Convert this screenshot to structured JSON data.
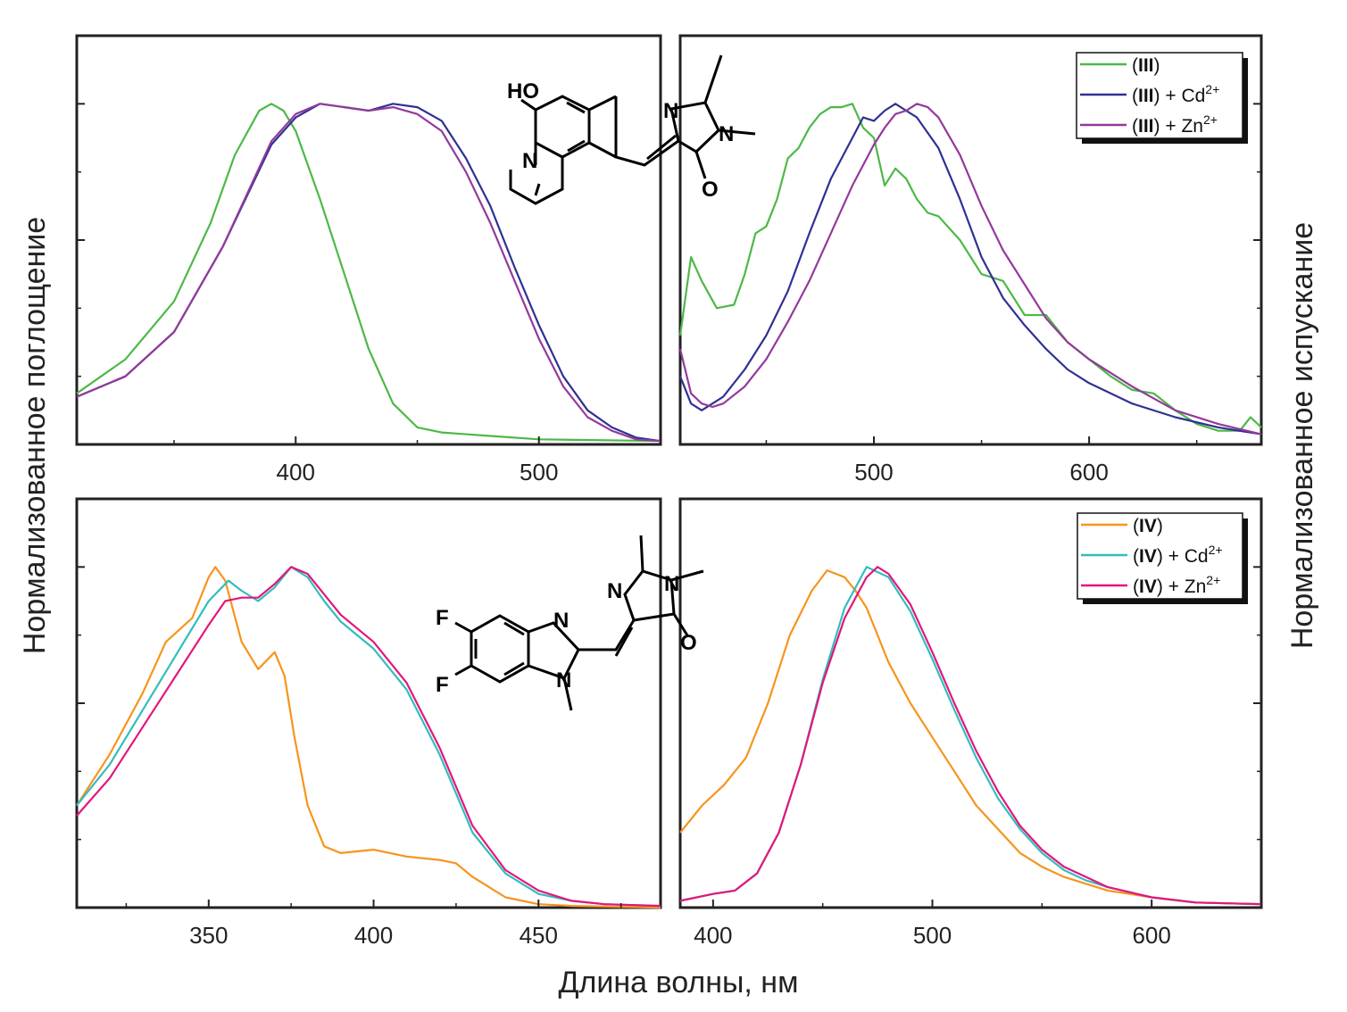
{
  "figure": {
    "xlabel": "Длина волны, нм",
    "ylabel_left": "Нормализованное поглощение",
    "ylabel_right": "Нормализованное испускание"
  },
  "structures": {
    "top": {
      "name": "(III)",
      "atoms": [
        "HO",
        "N",
        "N",
        "N",
        "O"
      ]
    },
    "bottom": {
      "name": "(IV)",
      "atoms": [
        "F",
        "F",
        "N",
        "N",
        "N",
        "N",
        "O"
      ]
    }
  },
  "colors": {
    "III": "#4db848",
    "III_Cd": "#2e3192",
    "III_Zn": "#93399b",
    "IV": "#f7941d",
    "IV_Cd": "#33bdbd",
    "IV_Zn": "#e3167b"
  },
  "chart_data": [
    {
      "id": "top-absorption",
      "type": "line",
      "title": "",
      "xlim": [
        310,
        550
      ],
      "ylim": [
        0,
        1.2
      ],
      "xticks": [
        400,
        500
      ],
      "xticklabels": [
        "400",
        "500"
      ],
      "grid": false,
      "series": [
        {
          "name": "(III)",
          "color_key": "III",
          "x": [
            310,
            330,
            350,
            365,
            375,
            385,
            390,
            395,
            400,
            410,
            420,
            430,
            440,
            450,
            460,
            480,
            500,
            550
          ],
          "y": [
            0.15,
            0.25,
            0.42,
            0.65,
            0.85,
            0.98,
            1.0,
            0.98,
            0.92,
            0.72,
            0.5,
            0.28,
            0.12,
            0.05,
            0.035,
            0.025,
            0.015,
            0.01
          ]
        },
        {
          "name": "(III) + Cd2+",
          "color_key": "III_Cd",
          "x": [
            310,
            330,
            350,
            370,
            390,
            400,
            410,
            420,
            430,
            440,
            450,
            460,
            470,
            480,
            490,
            500,
            510,
            520,
            530,
            540,
            550
          ],
          "y": [
            0.14,
            0.2,
            0.33,
            0.58,
            0.88,
            0.96,
            1.0,
            0.99,
            0.98,
            1.0,
            0.99,
            0.95,
            0.84,
            0.7,
            0.52,
            0.35,
            0.2,
            0.1,
            0.05,
            0.02,
            0.01
          ]
        },
        {
          "name": "(III) + Zn2+",
          "color_key": "III_Zn",
          "x": [
            310,
            330,
            350,
            370,
            390,
            400,
            410,
            420,
            430,
            440,
            450,
            460,
            470,
            480,
            490,
            500,
            510,
            520,
            530,
            540,
            550
          ],
          "y": [
            0.14,
            0.2,
            0.33,
            0.58,
            0.89,
            0.97,
            1.0,
            0.99,
            0.98,
            0.99,
            0.97,
            0.92,
            0.8,
            0.65,
            0.48,
            0.31,
            0.17,
            0.08,
            0.04,
            0.015,
            0.01
          ]
        }
      ]
    },
    {
      "id": "top-emission",
      "type": "line",
      "title": "",
      "xlim": [
        410,
        680
      ],
      "ylim": [
        0,
        1.2
      ],
      "xticks": [
        500,
        600
      ],
      "xticklabels": [
        "500",
        "600"
      ],
      "legend": {
        "position": "top-right",
        "entries": [
          "(III)",
          "(III) + Cd2+",
          "(III) + Zn2+"
        ]
      },
      "series": [
        {
          "name": "(III)",
          "color_key": "III",
          "x": [
            410,
            415,
            420,
            427,
            435,
            440,
            445,
            450,
            455,
            460,
            465,
            470,
            475,
            480,
            485,
            490,
            495,
            500,
            505,
            510,
            515,
            520,
            525,
            530,
            540,
            550,
            560,
            570,
            580,
            590,
            600,
            610,
            620,
            630,
            640,
            650,
            660,
            670,
            675,
            680
          ],
          "y": [
            0.32,
            0.55,
            0.48,
            0.4,
            0.41,
            0.5,
            0.62,
            0.64,
            0.72,
            0.84,
            0.87,
            0.93,
            0.97,
            0.99,
            0.99,
            1.0,
            0.93,
            0.9,
            0.76,
            0.81,
            0.78,
            0.72,
            0.68,
            0.67,
            0.6,
            0.5,
            0.48,
            0.38,
            0.38,
            0.3,
            0.25,
            0.2,
            0.16,
            0.15,
            0.1,
            0.06,
            0.04,
            0.04,
            0.08,
            0.05
          ]
        },
        {
          "name": "(III) + Cd2+",
          "color_key": "III_Cd",
          "x": [
            410,
            415,
            420,
            425,
            430,
            440,
            450,
            460,
            470,
            480,
            490,
            495,
            500,
            505,
            510,
            515,
            520,
            530,
            540,
            550,
            560,
            570,
            580,
            590,
            600,
            620,
            640,
            660,
            680
          ],
          "y": [
            0.2,
            0.12,
            0.1,
            0.12,
            0.14,
            0.22,
            0.32,
            0.45,
            0.62,
            0.78,
            0.9,
            0.96,
            0.95,
            0.98,
            1.0,
            0.98,
            0.96,
            0.87,
            0.72,
            0.55,
            0.43,
            0.35,
            0.28,
            0.22,
            0.18,
            0.12,
            0.08,
            0.05,
            0.03
          ]
        },
        {
          "name": "(III) + Zn2+",
          "color_key": "III_Zn",
          "x": [
            410,
            415,
            420,
            425,
            430,
            440,
            450,
            460,
            470,
            480,
            490,
            500,
            505,
            510,
            515,
            520,
            525,
            530,
            540,
            550,
            560,
            570,
            580,
            590,
            600,
            620,
            640,
            660,
            680
          ],
          "y": [
            0.28,
            0.15,
            0.12,
            0.11,
            0.12,
            0.17,
            0.25,
            0.36,
            0.48,
            0.62,
            0.76,
            0.88,
            0.93,
            0.97,
            0.98,
            1.0,
            0.99,
            0.96,
            0.85,
            0.7,
            0.57,
            0.47,
            0.37,
            0.3,
            0.25,
            0.17,
            0.1,
            0.06,
            0.03
          ]
        }
      ]
    },
    {
      "id": "bottom-absorption",
      "type": "line",
      "title": "",
      "xlim": [
        310,
        487
      ],
      "ylim": [
        0,
        1.2
      ],
      "xticks": [
        350,
        400,
        450
      ],
      "xticklabels": [
        "350",
        "400",
        "450"
      ],
      "series": [
        {
          "name": "(IV)",
          "color_key": "IV",
          "x": [
            310,
            320,
            330,
            337,
            345,
            350,
            352,
            355,
            360,
            365,
            370,
            373,
            376,
            380,
            385,
            390,
            400,
            410,
            420,
            425,
            430,
            435,
            440,
            450,
            460,
            487
          ],
          "y": [
            0.3,
            0.45,
            0.63,
            0.78,
            0.85,
            0.97,
            1.0,
            0.96,
            0.78,
            0.7,
            0.75,
            0.68,
            0.5,
            0.3,
            0.18,
            0.16,
            0.17,
            0.15,
            0.14,
            0.13,
            0.09,
            0.06,
            0.03,
            0.01,
            0.005,
            0.0
          ]
        },
        {
          "name": "(IV) + Cd2+",
          "color_key": "IV_Cd",
          "x": [
            310,
            320,
            330,
            340,
            350,
            356,
            360,
            365,
            370,
            375,
            380,
            385,
            390,
            400,
            410,
            420,
            430,
            440,
            450,
            460,
            470,
            487
          ],
          "y": [
            0.3,
            0.42,
            0.58,
            0.74,
            0.9,
            0.96,
            0.93,
            0.9,
            0.94,
            1.0,
            0.97,
            0.9,
            0.84,
            0.76,
            0.64,
            0.45,
            0.22,
            0.1,
            0.04,
            0.02,
            0.01,
            0.005
          ]
        },
        {
          "name": "(IV) + Zn2+",
          "color_key": "IV_Zn",
          "x": [
            310,
            320,
            330,
            340,
            350,
            355,
            360,
            365,
            370,
            375,
            380,
            385,
            390,
            400,
            410,
            420,
            430,
            440,
            450,
            460,
            470,
            487
          ],
          "y": [
            0.27,
            0.38,
            0.53,
            0.68,
            0.83,
            0.9,
            0.91,
            0.91,
            0.95,
            1.0,
            0.98,
            0.92,
            0.86,
            0.78,
            0.66,
            0.47,
            0.24,
            0.11,
            0.05,
            0.02,
            0.01,
            0.005
          ]
        }
      ]
    },
    {
      "id": "bottom-emission",
      "type": "line",
      "title": "",
      "xlim": [
        385,
        650
      ],
      "ylim": [
        0,
        1.2
      ],
      "xticks": [
        400,
        500,
        600
      ],
      "xticklabels": [
        "400",
        "500",
        "600"
      ],
      "legend": {
        "position": "top-right",
        "entries": [
          "(IV)",
          "(IV) + Cd2+",
          "(IV) + Zn2+"
        ]
      },
      "series": [
        {
          "name": "(IV)",
          "color_key": "IV",
          "x": [
            385,
            395,
            405,
            415,
            425,
            435,
            445,
            452,
            460,
            465,
            470,
            480,
            490,
            500,
            510,
            520,
            530,
            540,
            550,
            560,
            570,
            580,
            600,
            620,
            650
          ],
          "y": [
            0.22,
            0.3,
            0.36,
            0.44,
            0.6,
            0.8,
            0.93,
            0.99,
            0.97,
            0.93,
            0.88,
            0.72,
            0.6,
            0.5,
            0.4,
            0.3,
            0.23,
            0.16,
            0.12,
            0.09,
            0.07,
            0.05,
            0.03,
            0.015,
            0.01
          ]
        },
        {
          "name": "(IV) + Cd2+",
          "color_key": "IV_Cd",
          "x": [
            385,
            400,
            410,
            420,
            430,
            440,
            450,
            460,
            470,
            480,
            490,
            500,
            510,
            520,
            530,
            540,
            550,
            560,
            570,
            580,
            600,
            620,
            650
          ],
          "y": [
            0.02,
            0.04,
            0.05,
            0.1,
            0.22,
            0.42,
            0.67,
            0.88,
            1.0,
            0.97,
            0.87,
            0.73,
            0.58,
            0.44,
            0.32,
            0.23,
            0.16,
            0.11,
            0.08,
            0.06,
            0.03,
            0.015,
            0.01
          ]
        },
        {
          "name": "(IV) + Zn2+",
          "color_key": "IV_Zn",
          "x": [
            385,
            400,
            410,
            420,
            430,
            440,
            450,
            460,
            470,
            475,
            480,
            490,
            500,
            510,
            520,
            530,
            540,
            550,
            560,
            570,
            580,
            600,
            620,
            650
          ],
          "y": [
            0.02,
            0.04,
            0.05,
            0.1,
            0.22,
            0.42,
            0.66,
            0.85,
            0.97,
            1.0,
            0.98,
            0.89,
            0.75,
            0.6,
            0.46,
            0.34,
            0.24,
            0.17,
            0.12,
            0.09,
            0.06,
            0.03,
            0.015,
            0.01
          ]
        }
      ]
    }
  ]
}
